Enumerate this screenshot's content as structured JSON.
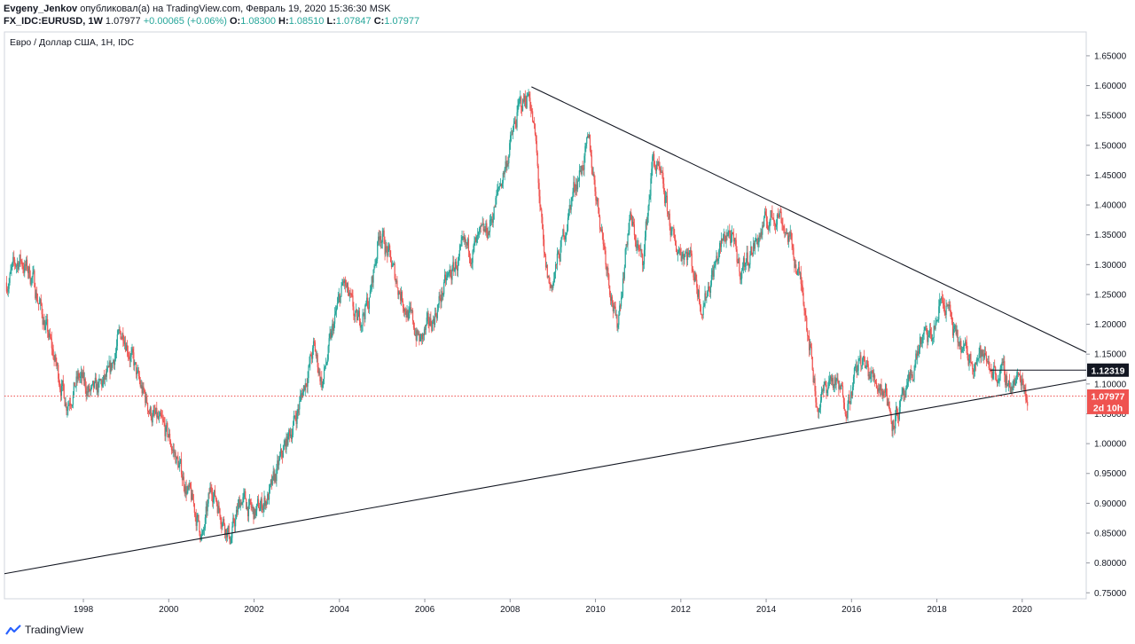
{
  "header": {
    "author": "Evgeny_Jenkov",
    "published_text": "опубликовал(а) на TradingView.com, Февраль 19, 2020 15:36:30 MSK",
    "symbol": "FX_IDC:EURUSD, 1W",
    "last": "1.07977",
    "change": "+0.00065 (+0.06%)",
    "o_label": "O:",
    "o_value": "1.08300",
    "h_label": "H:",
    "h_value": "1.08510",
    "l_label": "L:",
    "l_value": "1.07847",
    "c_label": "C:",
    "c_value": "1.07977"
  },
  "footer": {
    "brand": "TradingView",
    "icon": "tradingview-logo-icon"
  },
  "colors": {
    "up": "#26a69a",
    "down": "#ef5350",
    "grid": "#e1e3ea",
    "trendline": "#131722",
    "price_line": "#ef5350",
    "axis_text": "#131722"
  },
  "chart_data": {
    "type": "candlestick",
    "title": "Евро / Доллар США, 1Н, IDC",
    "x_tick_labels": [
      "1998",
      "2000",
      "2002",
      "2004",
      "2006",
      "2008",
      "2010",
      "2012",
      "2014",
      "2016",
      "2018",
      "2020"
    ],
    "x_range": [
      1996.15,
      2021.5
    ],
    "y_tick_labels": [
      "0.75000",
      "0.80000",
      "0.85000",
      "0.90000",
      "0.95000",
      "1.00000",
      "1.05000",
      "1.10000",
      "1.15000",
      "1.20000",
      "1.25000",
      "1.30000",
      "1.35000",
      "1.40000",
      "1.45000",
      "1.50000",
      "1.55000",
      "1.60000",
      "1.65000"
    ],
    "y_range": [
      0.74,
      1.69
    ],
    "price_path": [
      [
        1996.2,
        1.27
      ],
      [
        1996.5,
        1.31
      ],
      [
        1996.8,
        1.28
      ],
      [
        1997.1,
        1.2
      ],
      [
        1997.4,
        1.12
      ],
      [
        1997.6,
        1.07
      ],
      [
        1997.9,
        1.11
      ],
      [
        1998.2,
        1.08
      ],
      [
        1998.6,
        1.11
      ],
      [
        1998.8,
        1.17
      ],
      [
        1998.95,
        1.19
      ],
      [
        1999.3,
        1.1
      ],
      [
        1999.6,
        1.05
      ],
      [
        2000.0,
        1.01
      ],
      [
        2000.3,
        0.95
      ],
      [
        2000.6,
        0.89
      ],
      [
        2000.8,
        0.84
      ],
      [
        2001.0,
        0.93
      ],
      [
        2001.3,
        0.87
      ],
      [
        2001.45,
        0.84
      ],
      [
        2001.7,
        0.91
      ],
      [
        2002.0,
        0.88
      ],
      [
        2002.4,
        0.92
      ],
      [
        2002.7,
        0.99
      ],
      [
        2003.0,
        1.05
      ],
      [
        2003.4,
        1.16
      ],
      [
        2003.6,
        1.1
      ],
      [
        2003.9,
        1.21
      ],
      [
        2004.1,
        1.27
      ],
      [
        2004.4,
        1.2
      ],
      [
        2004.7,
        1.24
      ],
      [
        2004.95,
        1.36
      ],
      [
        2005.3,
        1.28
      ],
      [
        2005.6,
        1.22
      ],
      [
        2005.9,
        1.17
      ],
      [
        2006.2,
        1.21
      ],
      [
        2006.5,
        1.27
      ],
      [
        2006.9,
        1.32
      ],
      [
        2007.2,
        1.33
      ],
      [
        2007.5,
        1.36
      ],
      [
        2007.9,
        1.47
      ],
      [
        2008.2,
        1.56
      ],
      [
        2008.45,
        1.59
      ],
      [
        2008.6,
        1.5
      ],
      [
        2008.8,
        1.3
      ],
      [
        2008.95,
        1.26
      ],
      [
        2009.2,
        1.33
      ],
      [
        2009.5,
        1.43
      ],
      [
        2009.85,
        1.5
      ],
      [
        2010.1,
        1.38
      ],
      [
        2010.4,
        1.24
      ],
      [
        2010.5,
        1.19
      ],
      [
        2010.8,
        1.38
      ],
      [
        2011.1,
        1.3
      ],
      [
        2011.35,
        1.48
      ],
      [
        2011.6,
        1.42
      ],
      [
        2011.85,
        1.33
      ],
      [
        2012.2,
        1.32
      ],
      [
        2012.5,
        1.23
      ],
      [
        2012.8,
        1.3
      ],
      [
        2013.1,
        1.36
      ],
      [
        2013.4,
        1.29
      ],
      [
        2013.7,
        1.33
      ],
      [
        2014.0,
        1.37
      ],
      [
        2014.3,
        1.39
      ],
      [
        2014.6,
        1.33
      ],
      [
        2014.9,
        1.24
      ],
      [
        2015.1,
        1.12
      ],
      [
        2015.2,
        1.06
      ],
      [
        2015.5,
        1.11
      ],
      [
        2015.9,
        1.07
      ],
      [
        2016.2,
        1.14
      ],
      [
        2016.5,
        1.11
      ],
      [
        2016.8,
        1.09
      ],
      [
        2016.95,
        1.04
      ],
      [
        2017.3,
        1.08
      ],
      [
        2017.6,
        1.17
      ],
      [
        2017.9,
        1.18
      ],
      [
        2018.1,
        1.24
      ],
      [
        2018.25,
        1.23
      ],
      [
        2018.45,
        1.17
      ],
      [
        2018.8,
        1.14
      ],
      [
        2019.0,
        1.15
      ],
      [
        2019.4,
        1.12
      ],
      [
        2019.6,
        1.11
      ],
      [
        2019.75,
        1.1
      ],
      [
        2020.0,
        1.11
      ],
      [
        2020.13,
        1.08
      ]
    ],
    "trendlines": [
      {
        "from": [
          1996.15,
          0.782
        ],
        "to": [
          2021.5,
          1.107
        ]
      },
      {
        "from": [
          2008.5,
          1.598
        ],
        "to": [
          2021.5,
          1.153
        ]
      },
      {
        "from": [
          2019.25,
          1.1232
        ],
        "to": [
          2021.5,
          1.1232
        ]
      }
    ],
    "current_price_line": 1.07977,
    "price_labels": [
      {
        "text": "1.12319",
        "value": 1.12319,
        "style": "black"
      },
      {
        "text": "1.07977",
        "value": 1.07977,
        "style": "red"
      },
      {
        "text": "2d 10h",
        "value": 1.0605,
        "style": "red"
      }
    ]
  }
}
